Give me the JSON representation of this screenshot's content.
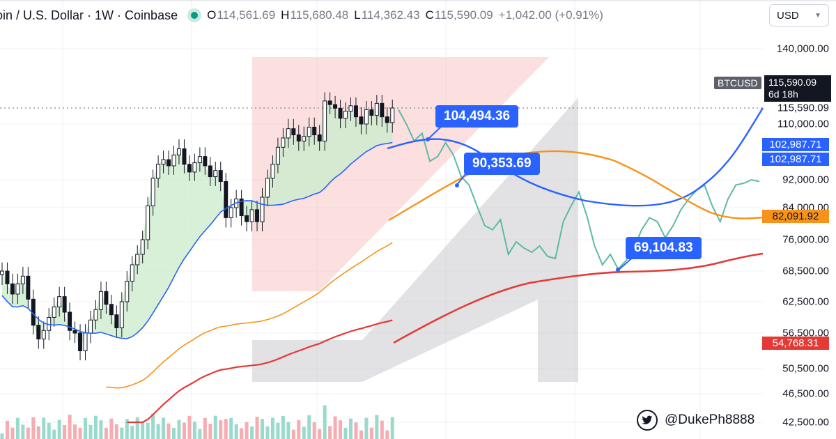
{
  "header": {
    "symbol_title": "oin / U.S. Dollar · 1W · Coinbase",
    "ohlc": [
      {
        "key": "O",
        "value": "114,561.69"
      },
      {
        "key": "H",
        "value": "115,680.48"
      },
      {
        "key": "L",
        "value": "114,362.43"
      },
      {
        "key": "C",
        "value": "115,590.09"
      }
    ],
    "change": "+1,042.00 (+0.91%)"
  },
  "currency_select": {
    "value": "USD"
  },
  "symbol_tag": "BTCUSD",
  "price_box": {
    "price": "115,590.09",
    "countdown": "6d 18h"
  },
  "axis": {
    "ticks": [
      "140,000.00",
      "110,000.00",
      "92,000.00",
      "84,000.00",
      "76,000.00",
      "68,500.00",
      "62,500.00",
      "56,500.00",
      "50,500.00",
      "46,500.00",
      "42,500.00"
    ],
    "current_price": "115,590.09"
  },
  "tags": [
    {
      "name": "blue-ma-tag-1",
      "value": "102,987.71",
      "color": "#2962ff"
    },
    {
      "name": "blue-ma-tag-2",
      "value": "102,987.71",
      "color": "#2962ff"
    },
    {
      "name": "orange-ma-tag",
      "value": "82,091.92",
      "color": "#f7931a"
    },
    {
      "name": "red-ma-tag",
      "value": "54,768.31",
      "color": "#e53935"
    }
  ],
  "callouts": [
    "104,494.36",
    "90,353.69",
    "69,104.83"
  ],
  "credit": {
    "handle": "@DukePh8888",
    "icon": "twitter-bird-icon"
  },
  "colors": {
    "up": "#089981",
    "down": "#f23645",
    "ma_fast": "#2962ff",
    "ma_mid": "#f7931a",
    "ma_slow": "#e53935",
    "projection": "#5fb8a6"
  },
  "chart_data": {
    "type": "line",
    "title": "oin / U.S. Dollar · 1W · Coinbase",
    "xlabel": "",
    "ylabel": "",
    "y_ticks": [
      140000,
      110000,
      92000,
      84000,
      76000,
      68500,
      62500,
      56500,
      50500,
      46500,
      42500
    ],
    "current_price": 115590.09,
    "ohlc_last": {
      "open": 114561.69,
      "high": 115680.48,
      "low": 114362.43,
      "close": 115590.09
    },
    "candles_close": [
      68500,
      66000,
      64000,
      66000,
      67500,
      63000,
      58000,
      55500,
      57000,
      59500,
      61500,
      63500,
      60500,
      57000,
      56500,
      53500,
      56500,
      59000,
      61000,
      64500,
      62000,
      60000,
      57500,
      62500,
      66500,
      70000,
      72500,
      76000,
      84500,
      92500,
      97000,
      98500,
      96500,
      100000,
      102000,
      97000,
      94500,
      97500,
      99500,
      96500,
      93000,
      95000,
      91500,
      81500,
      84000,
      86500,
      82000,
      80500,
      83500,
      80500,
      87000,
      92500,
      97000,
      102500,
      105500,
      108500,
      106500,
      104500,
      106000,
      109000,
      106500,
      104500,
      118500,
      117000,
      115500,
      112000,
      114500,
      116500,
      112500,
      110000,
      115000,
      113000,
      117500,
      112500,
      110500,
      115590
    ],
    "series": [
      {
        "name": "",
        "values": [
          104494.36,
          102987.71
        ]
      },
      {
        "name": "",
        "values": [
          82091.92
        ]
      },
      {
        "name": "",
        "values": [
          54768.31
        ]
      }
    ],
    "projection": [
      115000,
      110000,
      104500,
      107000,
      98000,
      99500,
      104000,
      100000,
      93000,
      90500,
      84500,
      79500,
      78500,
      81000,
      72500,
      75500,
      74000,
      73000,
      74500,
      72000,
      71500,
      80500,
      84500,
      88500,
      82000,
      74500,
      70000,
      72500,
      69000,
      71000,
      74000,
      78500,
      81500,
      80500,
      76500,
      79500,
      83500,
      86500,
      89000,
      90500,
      84500,
      80500,
      86500,
      90500,
      91000,
      92000,
      91500
    ],
    "annotations": [
      "104,494.36",
      "90,353.69",
      "69,104.83"
    ],
    "grid": true,
    "legend": "none"
  }
}
